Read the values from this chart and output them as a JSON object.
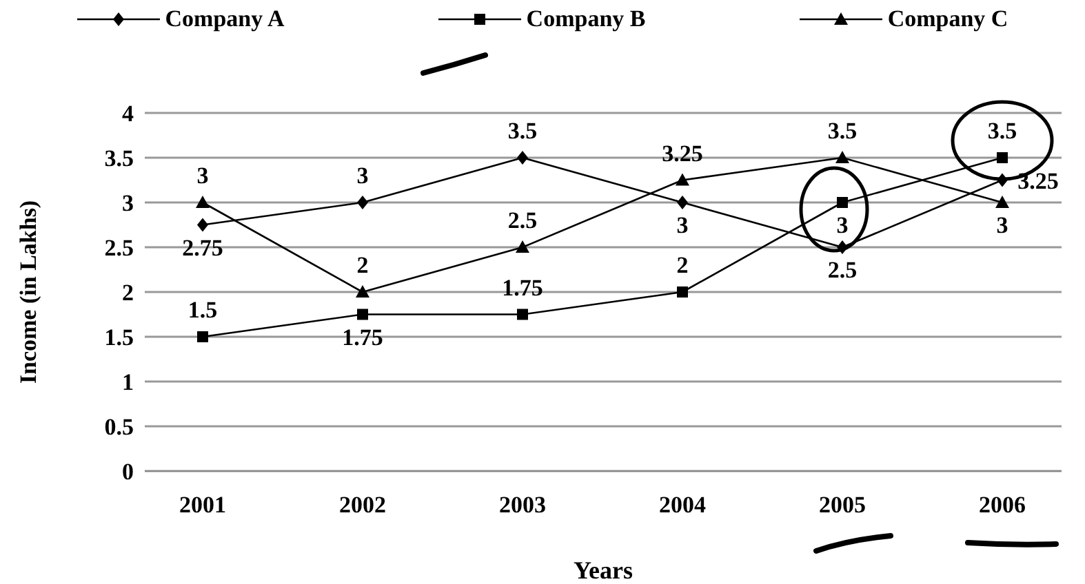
{
  "chart_data": {
    "type": "line",
    "xlabel": "Years",
    "ylabel": "Income (in Lakhs)",
    "categories": [
      "2001",
      "2002",
      "2003",
      "2004",
      "2005",
      "2006"
    ],
    "series": [
      {
        "name": "Company A",
        "color": "#000000",
        "marker": "diamond",
        "values": [
          2.75,
          3,
          3.5,
          3,
          2.5,
          3.25
        ]
      },
      {
        "name": "Company B",
        "color": "#000000",
        "marker": "square",
        "values": [
          1.5,
          1.75,
          1.75,
          2,
          3,
          3.5
        ]
      },
      {
        "name": "Company C",
        "color": "#000000",
        "marker": "triangle",
        "values": [
          3,
          2,
          2.5,
          3.25,
          3.5,
          3
        ]
      }
    ],
    "ylim": [
      0,
      4
    ],
    "yticks": [
      0,
      0.5,
      1,
      1.5,
      2,
      2.5,
      3,
      3.5,
      4
    ],
    "grid": "y",
    "legend": "top",
    "data_labels": true
  }
}
